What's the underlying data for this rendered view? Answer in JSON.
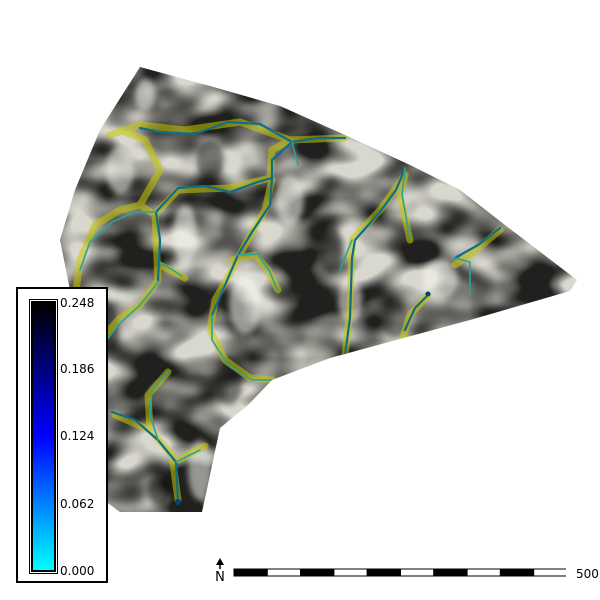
{
  "map": {
    "legend": {
      "ticks": [
        "0.248",
        "0.186",
        "0.124",
        "0.062",
        "0.000"
      ],
      "gradient_top": "#000000",
      "gradient_mid": "#0000ff",
      "gradient_bottom": "#00ffff"
    },
    "scale": {
      "label": "500",
      "segments": 10
    },
    "north_arrow": {
      "icon": "north-arrow-icon",
      "letter": "N"
    },
    "colors": {
      "stream_main": "#0f6e86",
      "stream_minor": "#2aa39a",
      "stream_halo": "#c8c800",
      "relief_light": "#f2f2ec",
      "relief_dark": "#151515"
    }
  }
}
